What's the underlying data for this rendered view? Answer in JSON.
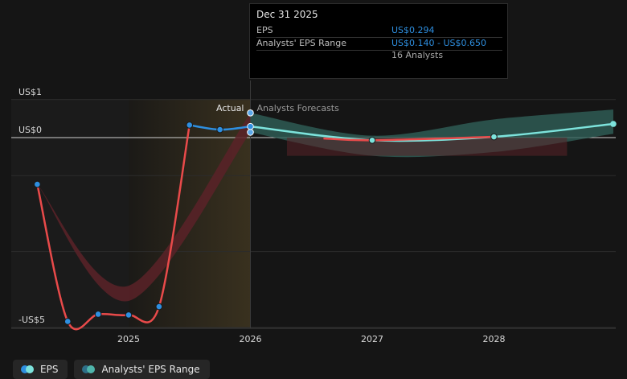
{
  "tooltip": {
    "date": "Dec 31 2025",
    "eps_label": "EPS",
    "eps_value": "US$0.294",
    "range_label": "Analysts' EPS Range",
    "range_value": "US$0.140 - US$0.650",
    "analysts": "16 Analysts"
  },
  "labels": {
    "actual": "Actual",
    "forecasts": "Analysts Forecasts"
  },
  "legend": [
    {
      "label": "EPS",
      "colors": [
        "#2e8fe0",
        "#7de3dc"
      ]
    },
    {
      "label": "Analysts' EPS Range",
      "colors": [
        "#2e6f88",
        "#4fb5ab"
      ]
    }
  ],
  "colors": {
    "eps_actual": "#2e8fe0",
    "eps_forecast_good": "#7de3dc",
    "eps_forecast_bad": "#e84a4a",
    "range_good": "#2f5f58",
    "range_bad": "#5a2228",
    "past_band": "#3d3420"
  },
  "chart_data": {
    "type": "line",
    "y_ticks": [
      {
        "value": 1,
        "label": "US$1"
      },
      {
        "value": 0,
        "label": "US$0"
      },
      {
        "value": -5,
        "label": "-US$5"
      }
    ],
    "x_ticks": [
      {
        "value": 2025.0,
        "label": "2025"
      },
      {
        "value": 2026.0,
        "label": "2026"
      },
      {
        "value": 2027.0,
        "label": "2027"
      },
      {
        "value": 2028.0,
        "label": "2028"
      }
    ],
    "xlim": [
      2023.7,
      2028.0
    ],
    "ylim": [
      -5.1,
      1.0
    ],
    "past_period": [
      2025.0,
      2026.0
    ],
    "series": [
      {
        "name": "EPS",
        "points": [
          {
            "x": 2024.25,
            "y": -1.23
          },
          {
            "x": 2024.5,
            "y": -4.84
          },
          {
            "x": 2024.75,
            "y": -4.65
          },
          {
            "x": 2025.0,
            "y": -4.67
          },
          {
            "x": 2025.25,
            "y": -4.45
          },
          {
            "x": 2025.5,
            "y": 0.33
          },
          {
            "x": 2025.75,
            "y": 0.21
          },
          {
            "x": 2026.0,
            "y": 0.294
          }
        ]
      },
      {
        "name": "Analysts Forecasts",
        "points": [
          {
            "x": 2026.0,
            "y": 0.294
          },
          {
            "x": 2027.0,
            "y": -0.07
          },
          {
            "x": 2028.0,
            "y": 0.02
          },
          {
            "x": 2028.98,
            "y": 0.36
          }
        ]
      }
    ],
    "range": {
      "name": "Analysts' EPS Range",
      "points": [
        {
          "x": 2024.25,
          "low": -1.23,
          "high": -1.23
        },
        {
          "x": 2025.0,
          "low": -4.3,
          "high": -3.9
        },
        {
          "x": 2026.0,
          "low": 0.14,
          "high": 0.65
        },
        {
          "x": 2027.0,
          "low": -0.48,
          "high": 0.05
        },
        {
          "x": 2028.0,
          "low": -0.38,
          "high": 0.48
        },
        {
          "x": 2028.98,
          "low": 0.1,
          "high": 0.74
        }
      ]
    }
  }
}
